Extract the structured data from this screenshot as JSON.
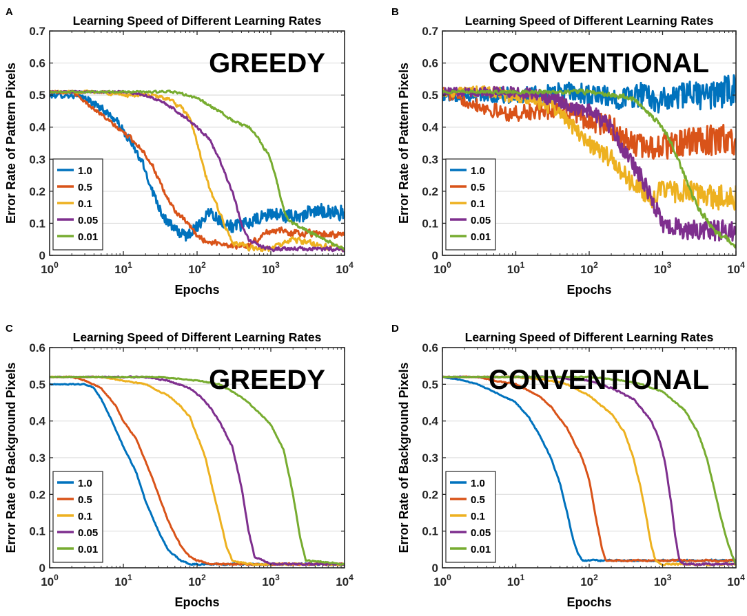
{
  "figure": {
    "panels": [
      "A",
      "B",
      "C",
      "D"
    ]
  },
  "colors": {
    "1.0": "#0072BD",
    "0.5": "#D95319",
    "0.1": "#EDB120",
    "0.05": "#7E2F8E",
    "0.01": "#77AC30"
  },
  "chart_data": [
    {
      "panel_letter": "A",
      "type": "line",
      "title": "Learning Speed of Different Learning Rates",
      "annotation": "GREEDY",
      "xlabel": "Epochs",
      "ylabel": "Error Rate of Pattern Pixels",
      "xscale": "log",
      "xlim": [
        1,
        10000
      ],
      "ylim": [
        0,
        0.7
      ],
      "yticks": [
        0,
        0.1,
        0.2,
        0.3,
        0.4,
        0.5,
        0.6,
        0.7
      ],
      "ytick_labels": [
        "0",
        "0.1",
        "0.2",
        "0.3",
        "0.4",
        "0.5",
        "0.6",
        "0.7"
      ],
      "xtick_labels": [
        [
          "10",
          "0"
        ],
        [
          "10",
          "1"
        ],
        [
          "10",
          "2"
        ],
        [
          "10",
          "3"
        ],
        [
          "10",
          "4"
        ]
      ],
      "grid": "horizontal",
      "legend_position": "bottom-left",
      "series": [
        {
          "name": "1.0",
          "x": [
            1,
            2,
            3,
            5,
            8,
            12,
            18,
            25,
            35,
            50,
            70,
            100,
            150,
            200,
            300,
            500,
            1000,
            2000,
            5000,
            10000
          ],
          "y": [
            0.5,
            0.5,
            0.49,
            0.46,
            0.42,
            0.36,
            0.29,
            0.2,
            0.12,
            0.08,
            0.06,
            0.09,
            0.14,
            0.11,
            0.09,
            0.1,
            0.13,
            0.12,
            0.14,
            0.13
          ],
          "noise": 0.025
        },
        {
          "name": "0.5",
          "x": [
            1,
            2,
            3,
            5,
            8,
            12,
            18,
            25,
            35,
            50,
            80,
            100,
            150,
            200,
            300,
            500,
            1000,
            2000,
            5000,
            10000
          ],
          "y": [
            0.51,
            0.51,
            0.48,
            0.44,
            0.4,
            0.37,
            0.33,
            0.28,
            0.2,
            0.14,
            0.09,
            0.06,
            0.04,
            0.04,
            0.03,
            0.03,
            0.08,
            0.07,
            0.07,
            0.06
          ],
          "noise": 0.018
        },
        {
          "name": "0.1",
          "x": [
            1,
            5,
            10,
            20,
            40,
            60,
            80,
            100,
            120,
            150,
            200,
            250,
            300,
            400,
            600,
            1000,
            2000,
            5000,
            10000
          ],
          "y": [
            0.51,
            0.51,
            0.5,
            0.5,
            0.49,
            0.46,
            0.43,
            0.35,
            0.28,
            0.2,
            0.14,
            0.08,
            0.04,
            0.03,
            0.02,
            0.02,
            0.05,
            0.03,
            0.02
          ],
          "noise": 0.015
        },
        {
          "name": "0.05",
          "x": [
            1,
            10,
            20,
            40,
            60,
            80,
            100,
            150,
            200,
            300,
            400,
            500,
            700,
            1000,
            2000,
            5000,
            10000
          ],
          "y": [
            0.51,
            0.51,
            0.5,
            0.47,
            0.44,
            0.42,
            0.4,
            0.36,
            0.3,
            0.2,
            0.1,
            0.05,
            0.03,
            0.02,
            0.02,
            0.02,
            0.02
          ],
          "noise": 0.01
        },
        {
          "name": "0.01",
          "x": [
            1,
            10,
            50,
            100,
            200,
            300,
            500,
            700,
            1000,
            1300,
            1600,
            2000,
            3000,
            5000,
            10000
          ],
          "y": [
            0.51,
            0.51,
            0.51,
            0.49,
            0.45,
            0.42,
            0.4,
            0.36,
            0.3,
            0.2,
            0.12,
            0.1,
            0.08,
            0.05,
            0.02
          ],
          "noise": 0.008
        }
      ]
    },
    {
      "panel_letter": "B",
      "type": "line",
      "title": "Learning Speed of Different Learning Rates",
      "annotation": "CONVENTIONAL",
      "xlabel": "Epochs",
      "ylabel": "Error Rate of Pattern Pixels",
      "xscale": "log",
      "xlim": [
        1,
        10000
      ],
      "ylim": [
        0,
        0.7
      ],
      "yticks": [
        0,
        0.1,
        0.2,
        0.3,
        0.4,
        0.5,
        0.6,
        0.7
      ],
      "ytick_labels": [
        "0",
        "0.1",
        "0.2",
        "0.3",
        "0.4",
        "0.5",
        "0.6",
        "0.7"
      ],
      "xtick_labels": [
        [
          "10",
          "0"
        ],
        [
          "10",
          "1"
        ],
        [
          "10",
          "2"
        ],
        [
          "10",
          "3"
        ],
        [
          "10",
          "4"
        ]
      ],
      "grid": "horizontal",
      "legend_position": "bottom-left",
      "series": [
        {
          "name": "1.0",
          "x": [
            1,
            5,
            10,
            20,
            50,
            100,
            200,
            500,
            1000,
            2000,
            5000,
            10000
          ],
          "y": [
            0.5,
            0.5,
            0.5,
            0.5,
            0.51,
            0.5,
            0.49,
            0.5,
            0.48,
            0.5,
            0.5,
            0.52
          ],
          "noise": 0.05
        },
        {
          "name": "0.5",
          "x": [
            1,
            3,
            5,
            10,
            20,
            40,
            60,
            100,
            200,
            300,
            500,
            1000,
            2000,
            5000,
            10000
          ],
          "y": [
            0.51,
            0.47,
            0.45,
            0.44,
            0.45,
            0.46,
            0.45,
            0.42,
            0.4,
            0.36,
            0.34,
            0.34,
            0.35,
            0.36,
            0.36
          ],
          "noise": 0.05
        },
        {
          "name": "0.1",
          "x": [
            1,
            5,
            10,
            20,
            40,
            60,
            100,
            200,
            300,
            500,
            700,
            1000,
            2000,
            5000,
            10000
          ],
          "y": [
            0.51,
            0.51,
            0.49,
            0.48,
            0.45,
            0.4,
            0.35,
            0.3,
            0.25,
            0.2,
            0.18,
            0.2,
            0.2,
            0.18,
            0.18
          ],
          "noise": 0.04
        },
        {
          "name": "0.05",
          "x": [
            1,
            5,
            10,
            20,
            40,
            60,
            100,
            200,
            300,
            500,
            700,
            1000,
            2000,
            5000,
            10000
          ],
          "y": [
            0.51,
            0.51,
            0.51,
            0.5,
            0.48,
            0.46,
            0.45,
            0.4,
            0.32,
            0.25,
            0.18,
            0.1,
            0.08,
            0.08,
            0.08
          ],
          "noise": 0.035
        },
        {
          "name": "0.01",
          "x": [
            1,
            10,
            50,
            100,
            200,
            400,
            600,
            800,
            1000,
            1500,
            2000,
            3000,
            5000,
            10000
          ],
          "y": [
            0.51,
            0.51,
            0.51,
            0.51,
            0.5,
            0.49,
            0.45,
            0.42,
            0.4,
            0.32,
            0.25,
            0.15,
            0.08,
            0.03
          ],
          "noise": 0.015
        }
      ]
    },
    {
      "panel_letter": "C",
      "type": "line",
      "title": "Learning Speed of Different Learning Rates",
      "annotation": "GREEDY",
      "xlabel": "Epochs",
      "ylabel": "Error Rate of Background Pixels",
      "xscale": "log",
      "xlim": [
        1,
        10000
      ],
      "ylim": [
        0,
        0.6
      ],
      "yticks": [
        0,
        0.1,
        0.2,
        0.3,
        0.4,
        0.5,
        0.6
      ],
      "ytick_labels": [
        "0",
        "0.1",
        "0.2",
        "0.3",
        "0.4",
        "0.5",
        "0.6"
      ],
      "xtick_labels": [
        [
          "10",
          "0"
        ],
        [
          "10",
          "1"
        ],
        [
          "10",
          "2"
        ],
        [
          "10",
          "3"
        ],
        [
          "10",
          "4"
        ]
      ],
      "grid": "horizontal",
      "legend_position": "bottom-left",
      "series": [
        {
          "name": "1.0",
          "x": [
            1,
            3,
            4,
            5,
            7,
            10,
            15,
            20,
            30,
            40,
            60,
            80,
            100,
            150,
            300,
            1000,
            10000
          ],
          "y": [
            0.5,
            0.5,
            0.49,
            0.46,
            0.4,
            0.33,
            0.26,
            0.18,
            0.1,
            0.05,
            0.02,
            0.01,
            0.01,
            0.01,
            0.01,
            0.01,
            0.01
          ],
          "noise": 0.004
        },
        {
          "name": "0.5",
          "x": [
            1,
            2,
            3,
            5,
            8,
            10,
            15,
            20,
            30,
            40,
            60,
            80,
            100,
            150,
            300,
            1000,
            10000
          ],
          "y": [
            0.52,
            0.52,
            0.51,
            0.49,
            0.44,
            0.4,
            0.35,
            0.29,
            0.2,
            0.13,
            0.06,
            0.03,
            0.02,
            0.01,
            0.01,
            0.01,
            0.01
          ],
          "noise": 0.004
        },
        {
          "name": "0.1",
          "x": [
            1,
            5,
            10,
            20,
            40,
            60,
            80,
            100,
            130,
            160,
            200,
            250,
            300,
            500,
            1000,
            10000
          ],
          "y": [
            0.52,
            0.52,
            0.51,
            0.5,
            0.47,
            0.44,
            0.41,
            0.36,
            0.3,
            0.22,
            0.14,
            0.06,
            0.02,
            0.01,
            0.01,
            0.01
          ],
          "noise": 0.004
        },
        {
          "name": "0.05",
          "x": [
            1,
            10,
            20,
            40,
            80,
            120,
            160,
            200,
            300,
            400,
            500,
            600,
            1000,
            10000
          ],
          "y": [
            0.52,
            0.52,
            0.52,
            0.51,
            0.49,
            0.46,
            0.43,
            0.4,
            0.33,
            0.22,
            0.1,
            0.03,
            0.01,
            0.01
          ],
          "noise": 0.004
        },
        {
          "name": "0.01",
          "x": [
            1,
            30,
            100,
            200,
            300,
            500,
            800,
            1000,
            1500,
            2000,
            2500,
            3000,
            10000
          ],
          "y": [
            0.52,
            0.52,
            0.51,
            0.5,
            0.48,
            0.45,
            0.41,
            0.39,
            0.32,
            0.2,
            0.08,
            0.02,
            0.01
          ],
          "noise": 0.003
        }
      ]
    },
    {
      "panel_letter": "D",
      "type": "line",
      "title": "Learning Speed of Different Learning Rates",
      "annotation": "CONVENTIONAL",
      "xlabel": "Epochs",
      "ylabel": "Error Rate of Background Pixels",
      "xscale": "log",
      "xlim": [
        1,
        10000
      ],
      "ylim": [
        0,
        0.6
      ],
      "yticks": [
        0,
        0.1,
        0.2,
        0.3,
        0.4,
        0.5,
        0.6
      ],
      "ytick_labels": [
        "0",
        "0.1",
        "0.2",
        "0.3",
        "0.4",
        "0.5",
        "0.6"
      ],
      "xtick_labels": [
        [
          "10",
          "0"
        ],
        [
          "10",
          "1"
        ],
        [
          "10",
          "2"
        ],
        [
          "10",
          "3"
        ],
        [
          "10",
          "4"
        ]
      ],
      "grid": "horizontal",
      "legend_position": "bottom-left",
      "series": [
        {
          "name": "1.0",
          "x": [
            1,
            2,
            3,
            5,
            10,
            15,
            20,
            30,
            40,
            50,
            60,
            70,
            80,
            100,
            200,
            1000,
            10000
          ],
          "y": [
            0.52,
            0.51,
            0.5,
            0.48,
            0.45,
            0.41,
            0.37,
            0.3,
            0.23,
            0.15,
            0.08,
            0.04,
            0.02,
            0.02,
            0.02,
            0.02,
            0.02
          ],
          "noise": 0.004
        },
        {
          "name": "0.5",
          "x": [
            1,
            3,
            5,
            10,
            20,
            30,
            50,
            80,
            100,
            120,
            150,
            170,
            200,
            1000,
            10000
          ],
          "y": [
            0.52,
            0.52,
            0.51,
            0.5,
            0.47,
            0.44,
            0.38,
            0.3,
            0.24,
            0.15,
            0.05,
            0.02,
            0.02,
            0.02,
            0.02
          ],
          "noise": 0.004
        },
        {
          "name": "0.1",
          "x": [
            1,
            10,
            30,
            50,
            100,
            200,
            300,
            400,
            500,
            600,
            700,
            800,
            1000,
            10000
          ],
          "y": [
            0.52,
            0.52,
            0.51,
            0.5,
            0.47,
            0.42,
            0.37,
            0.3,
            0.22,
            0.14,
            0.06,
            0.02,
            0.01,
            0.01
          ],
          "noise": 0.004
        },
        {
          "name": "0.05",
          "x": [
            1,
            30,
            100,
            200,
            400,
            700,
            900,
            1100,
            1300,
            1500,
            1700,
            2000,
            10000
          ],
          "y": [
            0.52,
            0.52,
            0.51,
            0.49,
            0.46,
            0.4,
            0.35,
            0.28,
            0.18,
            0.08,
            0.02,
            0.01,
            0.01
          ],
          "noise": 0.004
        },
        {
          "name": "0.01",
          "x": [
            1,
            100,
            300,
            500,
            1000,
            2000,
            3000,
            4000,
            5000,
            6000,
            7000,
            8000,
            9000,
            10000
          ],
          "y": [
            0.52,
            0.52,
            0.51,
            0.5,
            0.48,
            0.43,
            0.37,
            0.3,
            0.22,
            0.15,
            0.1,
            0.06,
            0.03,
            0.01
          ],
          "noise": 0.003
        }
      ]
    }
  ]
}
